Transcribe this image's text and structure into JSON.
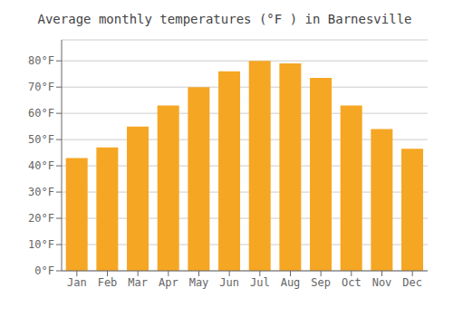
{
  "chart_data": {
    "type": "bar",
    "title": "Average monthly temperatures (°F ) in Barnesville",
    "categories": [
      "Jan",
      "Feb",
      "Mar",
      "Apr",
      "May",
      "Jun",
      "Jul",
      "Aug",
      "Sep",
      "Oct",
      "Nov",
      "Dec"
    ],
    "values": [
      43,
      47,
      55,
      63,
      70,
      76,
      80,
      79,
      73.5,
      63,
      54,
      46.5
    ],
    "color": "#F5A623",
    "ylim": [
      0,
      88
    ],
    "yticks": [
      {
        "value": 0,
        "label": "0°F"
      },
      {
        "value": 10,
        "label": "10°F"
      },
      {
        "value": 20,
        "label": "20°F"
      },
      {
        "value": 30,
        "label": "30°F"
      },
      {
        "value": 40,
        "label": "40°F"
      },
      {
        "value": 50,
        "label": "50°F"
      },
      {
        "value": 60,
        "label": "60°F"
      },
      {
        "value": 70,
        "label": "70°F"
      },
      {
        "value": 80,
        "label": "80°F"
      }
    ],
    "grid": true
  }
}
